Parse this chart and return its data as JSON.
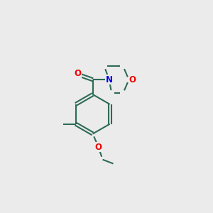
{
  "bg_color": "#ebebeb",
  "bond_color": "#2d6b57",
  "N_color": "#0000ee",
  "O_color": "#ee0000",
  "lw": 1.5,
  "fig_w": 3.0,
  "fig_h": 3.0,
  "dpi": 100,
  "xlim": [
    0,
    10
  ],
  "ylim": [
    0,
    10
  ],
  "font_size": 8.5
}
